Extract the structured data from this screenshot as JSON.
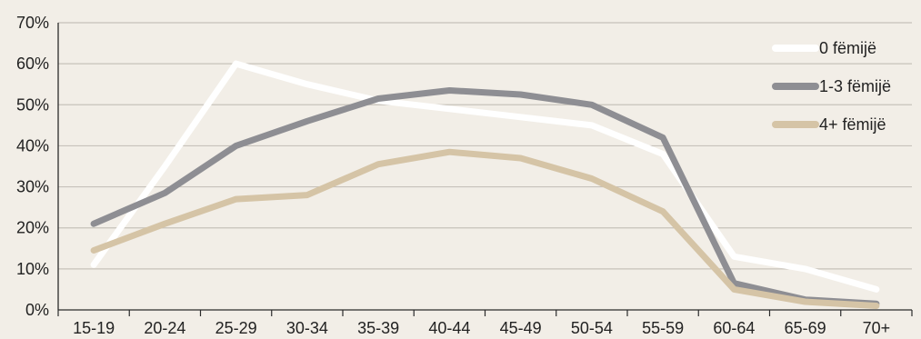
{
  "chart_data": {
    "type": "line",
    "categories": [
      "15-19",
      "20-24",
      "25-29",
      "30-34",
      "35-39",
      "40-44",
      "45-49",
      "50-54",
      "55-59",
      "60-64",
      "65-69",
      "70+"
    ],
    "y_ticks": [
      "0%",
      "10%",
      "20%",
      "30%",
      "40%",
      "50%",
      "60%",
      "70%"
    ],
    "ylim": [
      0,
      70
    ],
    "grid": true,
    "legend_position": "right",
    "series": [
      {
        "name": "0 fëmijë",
        "color": "#ffffff",
        "values": [
          11,
          35,
          60,
          55,
          51,
          49,
          47,
          45,
          38,
          13,
          10,
          5
        ]
      },
      {
        "name": "1-3 fëmijë",
        "color": "#8e8e93",
        "values": [
          21,
          28.5,
          40,
          46,
          51.5,
          53.5,
          52.5,
          50,
          42,
          6.5,
          2.5,
          1.5
        ]
      },
      {
        "name": "4+ fëmijë",
        "color": "#d5c4a6",
        "values": [
          14.5,
          21,
          27,
          28,
          35.5,
          38.5,
          37,
          32,
          24,
          5,
          2,
          1
        ]
      }
    ]
  }
}
